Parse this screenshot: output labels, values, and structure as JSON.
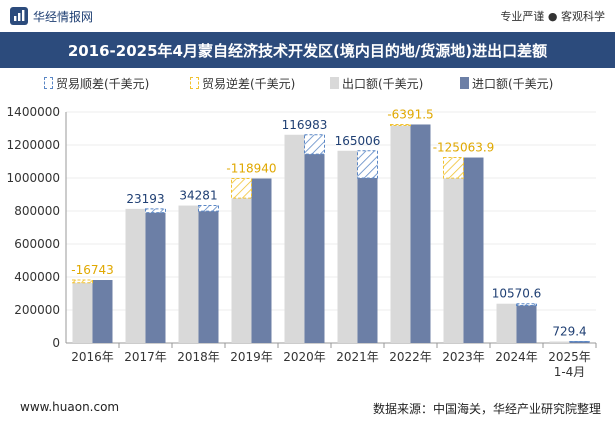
{
  "header": {
    "brand": "华经情报网",
    "slogan": "专业严谨 ● 客观科学"
  },
  "footer": {
    "website": "www.huaon.com",
    "source": "数据来源：中国海关，华经产业研究院整理"
  },
  "colors": {
    "brand_blue": "#2c4b7c",
    "surplus": "#5b87c5",
    "deficit": "#f1c232",
    "export": "#d9d9d9",
    "import": "#6c7fa6"
  },
  "chart_data": {
    "type": "bar",
    "title": "2016-2025年4月蒙自经济技术开发区(境内目的地/货源地)进出口差额",
    "categories": [
      "2016年",
      "2017年",
      "2018年",
      "2019年",
      "2020年",
      "2021年",
      "2022年",
      "2023年",
      "2024年",
      "2025年\n1-4月"
    ],
    "legend": [
      "贸易顺差(千美元)",
      "贸易逆差(千美元)",
      "出口额(千美元)",
      "进口额(千美元)"
    ],
    "series": [
      {
        "name": "出口额(千美元)",
        "values": [
          365000,
          813000,
          833000,
          878000,
          1262000,
          1165000,
          1318000,
          999000,
          238000,
          9200
        ]
      },
      {
        "name": "进口额(千美元)",
        "values": [
          381743,
          790000,
          799000,
          996940,
          1145000,
          1000000,
          1324391,
          1124064,
          227429,
          8470
        ]
      }
    ],
    "balance_labels": [
      "-16743",
      "23193",
      "34281",
      "-118940",
      "116983",
      "165006",
      "-6391.5",
      "-125063.9",
      "10570.6",
      "729.4"
    ],
    "yticks": [
      "0",
      "200000",
      "400000",
      "600000",
      "800000",
      "1000000",
      "1200000",
      "1400000"
    ],
    "ylim": [
      0,
      1400000
    ]
  }
}
